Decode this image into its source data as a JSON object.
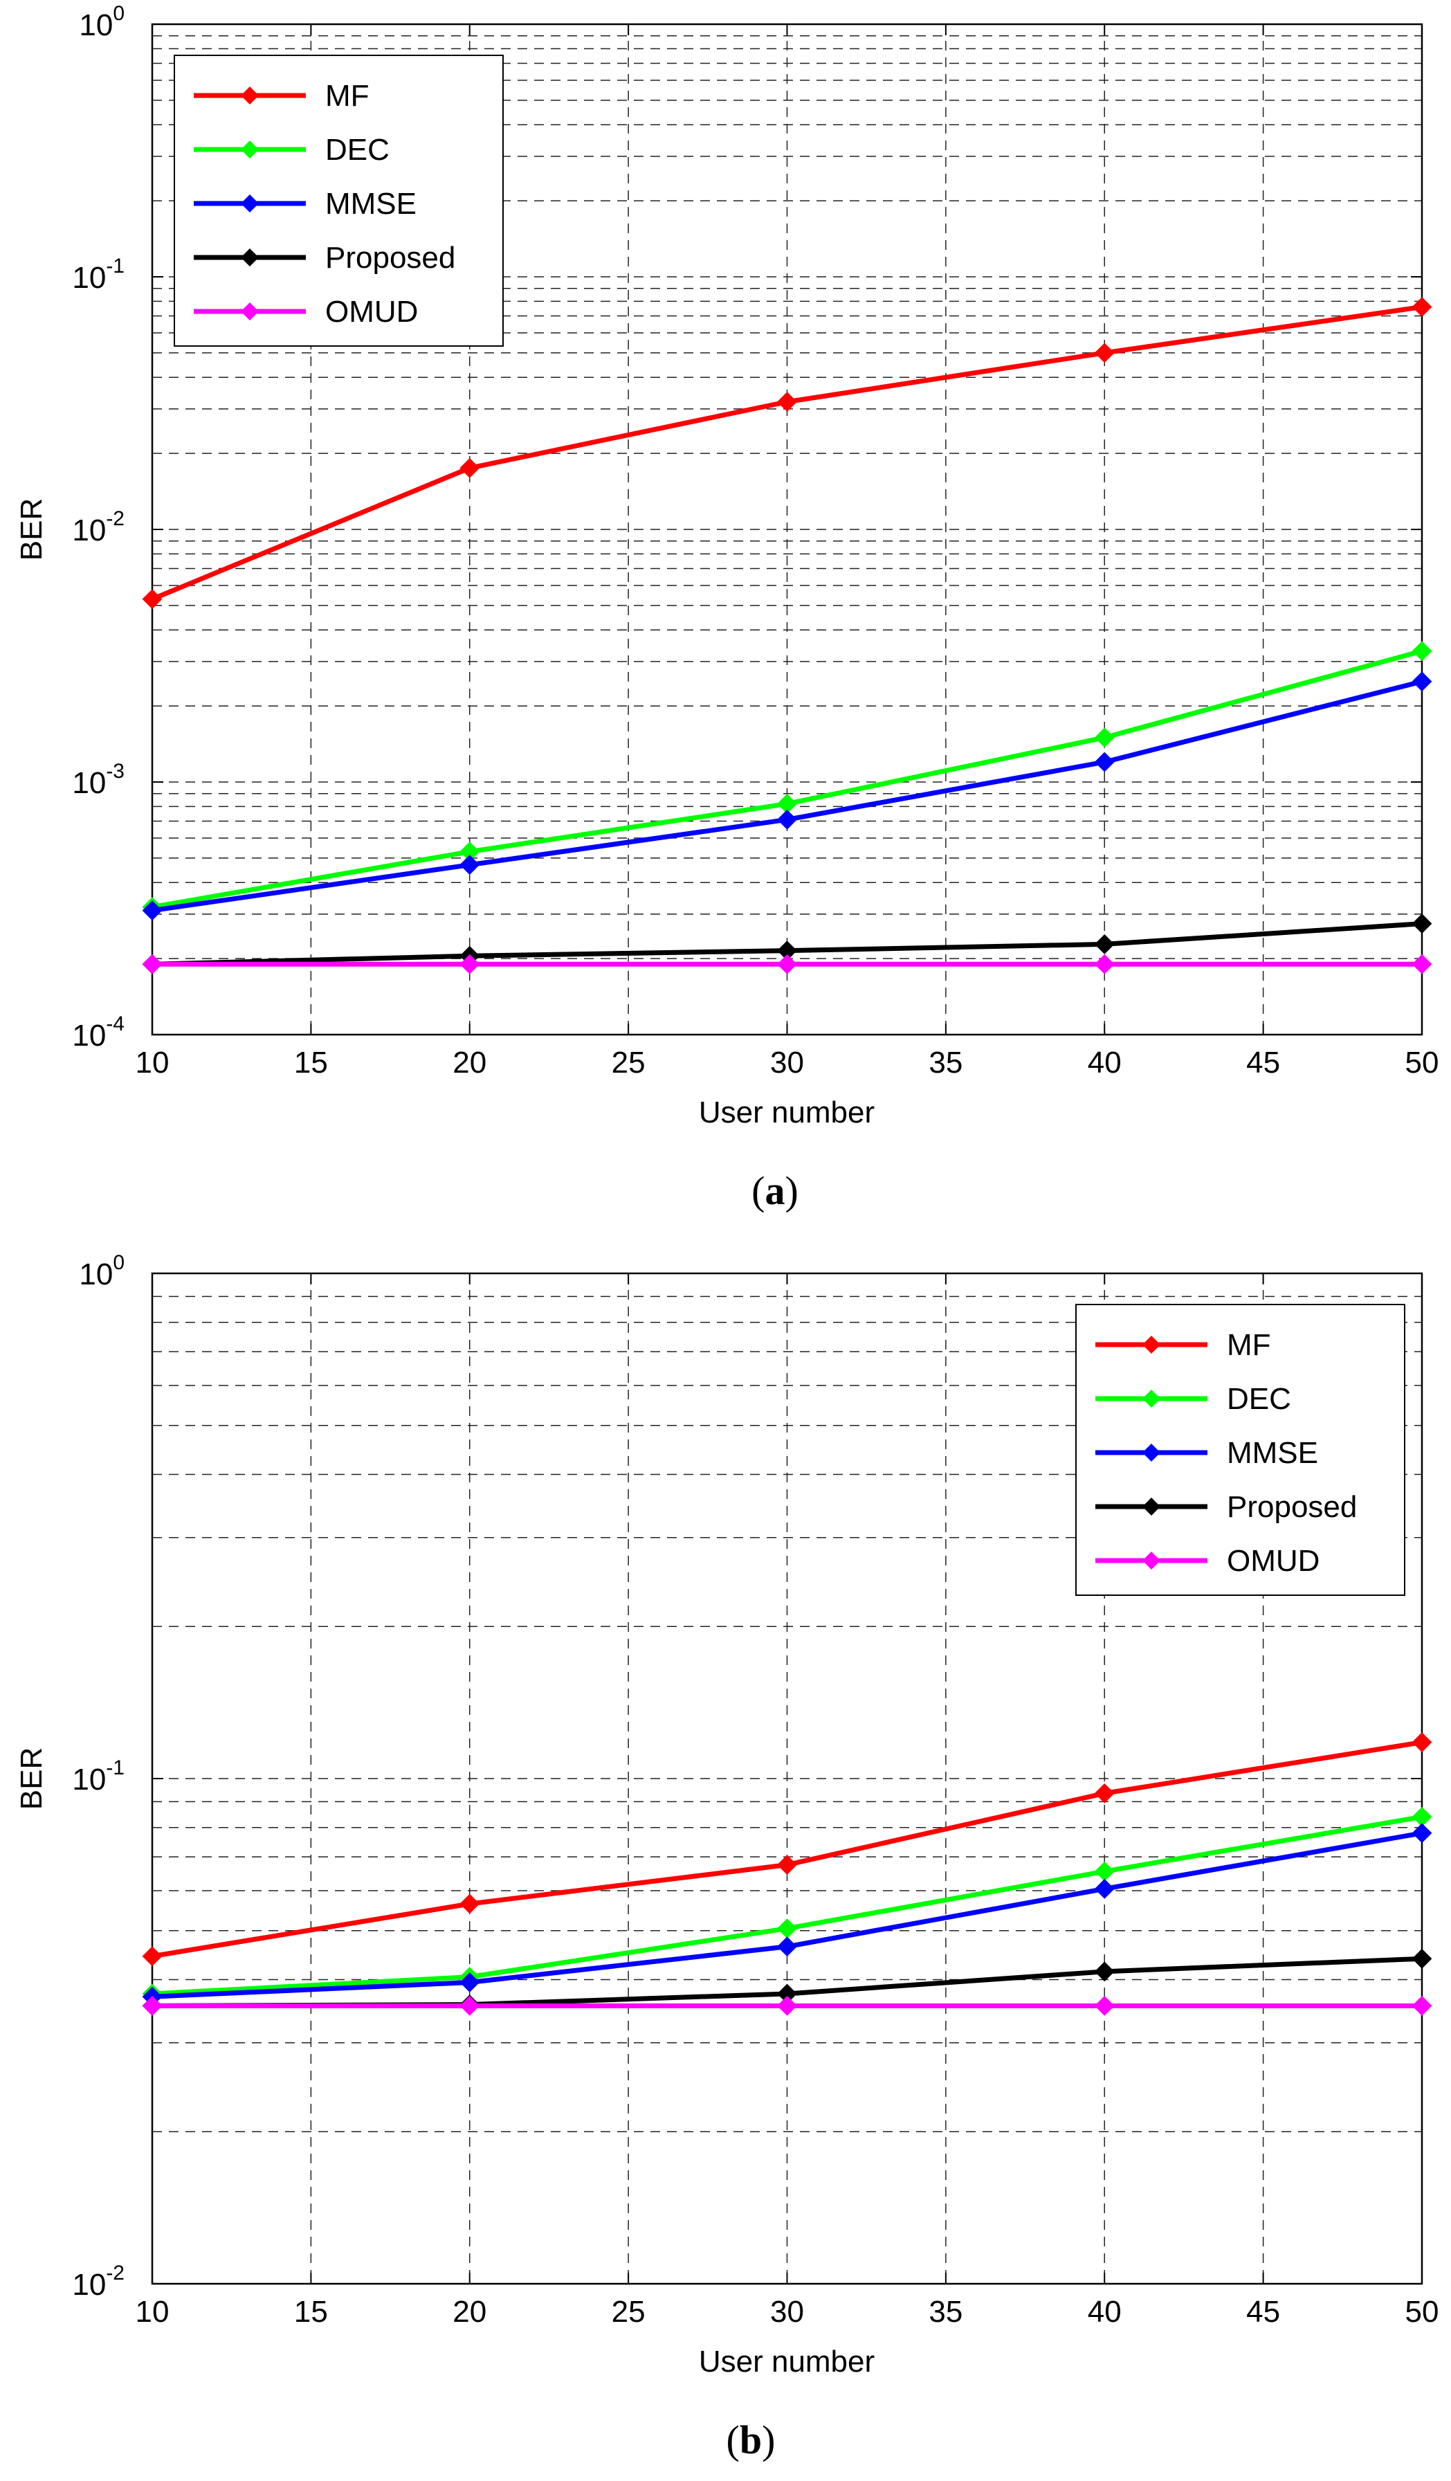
{
  "colors": {
    "MF": "#ff0000",
    "DEC": "#00ff00",
    "MMSE": "#0000ff",
    "Proposed": "#000000",
    "OMUD": "#ff00ff",
    "grid": "#222222",
    "axis": "#000000"
  },
  "chart_data": [
    {
      "id": "a",
      "caption": {
        "open": "(",
        "letter": "a",
        "close": ")"
      },
      "type": "line",
      "xlabel": "User number",
      "ylabel": "BER",
      "yscale": "log",
      "xlim": [
        10,
        50
      ],
      "ylim": [
        0.0001,
        1
      ],
      "grid": true,
      "legend_position": "top-left",
      "x_ticks": [
        10,
        15,
        20,
        25,
        30,
        35,
        40,
        45,
        50
      ],
      "x_tick_labels": [
        "10",
        "15",
        "20",
        "25",
        "30",
        "35",
        "40",
        "45",
        "50"
      ],
      "y_ticks": [
        {
          "value": 1,
          "base": "10",
          "exp": "0"
        },
        {
          "value": 0.1,
          "base": "10",
          "exp": "-1"
        },
        {
          "value": 0.01,
          "base": "10",
          "exp": "-2"
        },
        {
          "value": 0.001,
          "base": "10",
          "exp": "-3"
        },
        {
          "value": 0.0001,
          "base": "10",
          "exp": "-4"
        }
      ],
      "x": [
        10,
        20,
        30,
        40,
        50
      ],
      "series": [
        {
          "name": "MF",
          "values": [
            0.0053,
            0.0175,
            0.032,
            0.05,
            0.076
          ]
        },
        {
          "name": "DEC",
          "values": [
            0.00032,
            0.00053,
            0.00082,
            0.0015,
            0.0033
          ]
        },
        {
          "name": "MMSE",
          "values": [
            0.00031,
            0.00047,
            0.00071,
            0.0012,
            0.0025
          ]
        },
        {
          "name": "Proposed",
          "values": [
            0.00019,
            0.000205,
            0.000215,
            0.000228,
            0.000275
          ]
        },
        {
          "name": "OMUD",
          "values": [
            0.00019,
            0.00019,
            0.00019,
            0.00019,
            0.00019
          ]
        }
      ]
    },
    {
      "id": "b",
      "caption": {
        "open": "(",
        "letter": "b",
        "close": ")"
      },
      "type": "line",
      "xlabel": "User number",
      "ylabel": "BER",
      "yscale": "log",
      "xlim": [
        10,
        50
      ],
      "ylim": [
        0.01,
        1
      ],
      "grid": true,
      "legend_position": "top-right",
      "x_ticks": [
        10,
        15,
        20,
        25,
        30,
        35,
        40,
        45,
        50
      ],
      "x_tick_labels": [
        "10",
        "15",
        "20",
        "25",
        "30",
        "35",
        "40",
        "45",
        "50"
      ],
      "y_ticks": [
        {
          "value": 1,
          "base": "10",
          "exp": "0"
        },
        {
          "value": 0.1,
          "base": "10",
          "exp": "-1"
        },
        {
          "value": 0.01,
          "base": "10",
          "exp": "-2"
        }
      ],
      "x": [
        10,
        20,
        30,
        40,
        50
      ],
      "series": [
        {
          "name": "MF",
          "values": [
            0.0445,
            0.0565,
            0.0675,
            0.0935,
            0.118
          ]
        },
        {
          "name": "DEC",
          "values": [
            0.0375,
            0.0405,
            0.0505,
            0.0655,
            0.084
          ]
        },
        {
          "name": "MMSE",
          "values": [
            0.037,
            0.0395,
            0.0465,
            0.0605,
            0.078
          ]
        },
        {
          "name": "Proposed",
          "values": [
            0.0355,
            0.0357,
            0.0375,
            0.0415,
            0.044
          ]
        },
        {
          "name": "OMUD",
          "values": [
            0.0355,
            0.0355,
            0.0355,
            0.0355,
            0.0355
          ]
        }
      ]
    }
  ]
}
